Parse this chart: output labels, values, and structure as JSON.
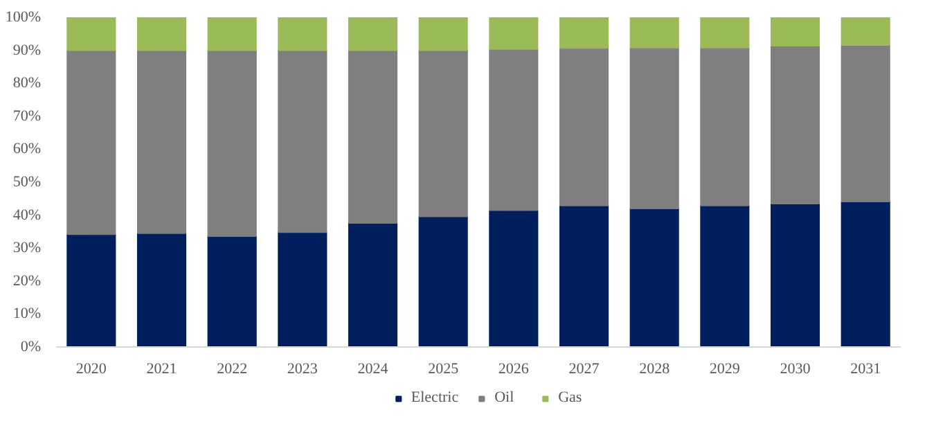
{
  "chart_data": {
    "type": "bar",
    "stacked": true,
    "categories": [
      "2020",
      "2021",
      "2022",
      "2023",
      "2024",
      "2025",
      "2026",
      "2027",
      "2028",
      "2029",
      "2030",
      "2031"
    ],
    "series": [
      {
        "name": "Electric",
        "color": "#001f5c",
        "values": [
          34.2,
          34.5,
          33.6,
          34.8,
          37.6,
          39.6,
          41.5,
          42.9,
          42.0,
          42.9,
          43.5,
          44.1
        ]
      },
      {
        "name": "Oil",
        "color": "#7f7f7f",
        "values": [
          55.8,
          55.5,
          56.4,
          55.2,
          52.4,
          50.4,
          48.9,
          47.8,
          48.8,
          47.9,
          47.9,
          47.5
        ]
      },
      {
        "name": "Gas",
        "color": "#9bbb59",
        "values": [
          10,
          10,
          10,
          10,
          10,
          10,
          9.6,
          9.3,
          9.2,
          9.2,
          8.6,
          8.4
        ]
      }
    ],
    "ylim": [
      0,
      100
    ],
    "yticks": [
      {
        "value": 0,
        "label": "0%"
      },
      {
        "value": 10,
        "label": "10%"
      },
      {
        "value": 20,
        "label": "20%"
      },
      {
        "value": 30,
        "label": "30%"
      },
      {
        "value": 40,
        "label": "40%"
      },
      {
        "value": 50,
        "label": "50%"
      },
      {
        "value": 60,
        "label": "60%"
      },
      {
        "value": 70,
        "label": "70%"
      },
      {
        "value": 80,
        "label": "80%"
      },
      {
        "value": 90,
        "label": "90%"
      },
      {
        "value": 100,
        "label": "100%"
      }
    ],
    "grid": false,
    "legend": "bottom"
  }
}
